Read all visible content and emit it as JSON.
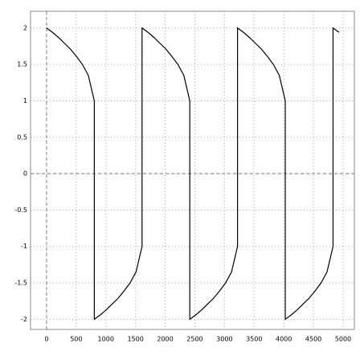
{
  "chart_data": {
    "type": "line",
    "x": [
      0,
      101,
      201,
      302,
      403,
      503,
      604,
      704,
      805,
      805,
      906,
      1006,
      1107,
      1208,
      1308,
      1409,
      1509,
      1610,
      1610,
      1711,
      1811,
      1912,
      2013,
      2113,
      2214,
      2314,
      2415,
      2415,
      2516,
      2616,
      2717,
      2818,
      2918,
      3019,
      3119,
      3220,
      3220,
      3321,
      3421,
      3522,
      3623,
      3723,
      3824,
      3924,
      4025,
      4025,
      4126,
      4226,
      4327,
      4428,
      4528,
      4629,
      4729,
      4830,
      4830,
      4931
    ],
    "series": [
      {
        "color": "#000000",
        "values": [
          2,
          1.94,
          1.87,
          1.79,
          1.71,
          1.61,
          1.5,
          1.35,
          1,
          -2,
          -1.94,
          -1.87,
          -1.79,
          -1.71,
          -1.61,
          -1.5,
          -1.35,
          -1,
          2,
          1.94,
          1.87,
          1.79,
          1.71,
          1.61,
          1.5,
          1.35,
          1,
          -2,
          -1.94,
          -1.87,
          -1.79,
          -1.71,
          -1.61,
          -1.5,
          -1.35,
          -1,
          2,
          1.94,
          1.87,
          1.79,
          1.71,
          1.61,
          1.5,
          1.35,
          1,
          -2,
          -1.94,
          -1.87,
          -1.79,
          -1.71,
          -1.61,
          -1.5,
          -1.35,
          -1,
          2,
          1.94
        ]
      }
    ],
    "xlim": [
      -270,
      5190
    ],
    "ylim": [
      -2.14,
      2.23
    ],
    "xticks": [
      0,
      500,
      1000,
      1500,
      2000,
      2500,
      3000,
      3500,
      4000,
      4500,
      5000
    ],
    "yticks": [
      -2,
      -1.5,
      -1,
      -0.5,
      0,
      0.5,
      1,
      1.5,
      2
    ],
    "grid": true
  }
}
